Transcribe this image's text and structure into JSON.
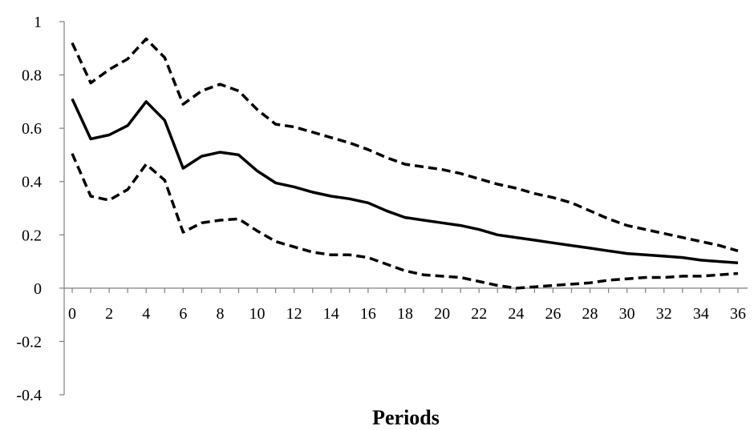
{
  "chart_data": {
    "type": "line",
    "title": "",
    "xlabel": "Periods",
    "ylabel": "",
    "xlim": [
      0,
      36
    ],
    "ylim": [
      -0.4,
      1
    ],
    "x_ticks": [
      0,
      2,
      4,
      6,
      8,
      10,
      12,
      14,
      16,
      18,
      20,
      22,
      24,
      26,
      28,
      30,
      32,
      34,
      36
    ],
    "y_ticks": [
      -0.4,
      -0.2,
      0,
      0.2,
      0.4,
      0.6,
      0.8,
      1
    ],
    "y_tick_labels": [
      "-0.4",
      "-0.2",
      "0",
      "0.2",
      "0.4",
      "0.6",
      "0.8",
      "1"
    ],
    "grid": false,
    "legend": "none",
    "x": [
      0,
      1,
      2,
      3,
      4,
      5,
      6,
      7,
      8,
      9,
      10,
      11,
      12,
      13,
      14,
      15,
      16,
      17,
      18,
      19,
      20,
      21,
      22,
      23,
      24,
      25,
      26,
      27,
      28,
      29,
      30,
      31,
      32,
      33,
      34,
      35,
      36
    ],
    "series": [
      {
        "style": "dashed",
        "color": "#000000",
        "values": [
          0.92,
          0.77,
          0.82,
          0.86,
          0.935,
          0.865,
          0.69,
          0.74,
          0.765,
          0.74,
          0.67,
          0.615,
          0.605,
          0.585,
          0.565,
          0.545,
          0.52,
          0.49,
          0.465,
          0.455,
          0.445,
          0.43,
          0.41,
          0.39,
          0.375,
          0.355,
          0.34,
          0.32,
          0.29,
          0.26,
          0.235,
          0.22,
          0.205,
          0.19,
          0.175,
          0.16,
          0.14
        ]
      },
      {
        "style": "solid",
        "color": "#000000",
        "values": [
          0.71,
          0.56,
          0.575,
          0.61,
          0.7,
          0.63,
          0.45,
          0.495,
          0.51,
          0.5,
          0.44,
          0.395,
          0.38,
          0.36,
          0.345,
          0.335,
          0.32,
          0.29,
          0.265,
          0.255,
          0.245,
          0.235,
          0.22,
          0.2,
          0.19,
          0.18,
          0.17,
          0.16,
          0.15,
          0.14,
          0.13,
          0.125,
          0.12,
          0.115,
          0.105,
          0.1,
          0.095
        ]
      },
      {
        "style": "dashed",
        "color": "#000000",
        "values": [
          0.505,
          0.345,
          0.33,
          0.37,
          0.465,
          0.405,
          0.21,
          0.245,
          0.255,
          0.26,
          0.215,
          0.175,
          0.155,
          0.135,
          0.125,
          0.125,
          0.115,
          0.09,
          0.065,
          0.05,
          0.045,
          0.04,
          0.025,
          0.01,
          0.0,
          0.005,
          0.01,
          0.015,
          0.02,
          0.03,
          0.035,
          0.04,
          0.04,
          0.045,
          0.045,
          0.05,
          0.055
        ]
      }
    ]
  }
}
